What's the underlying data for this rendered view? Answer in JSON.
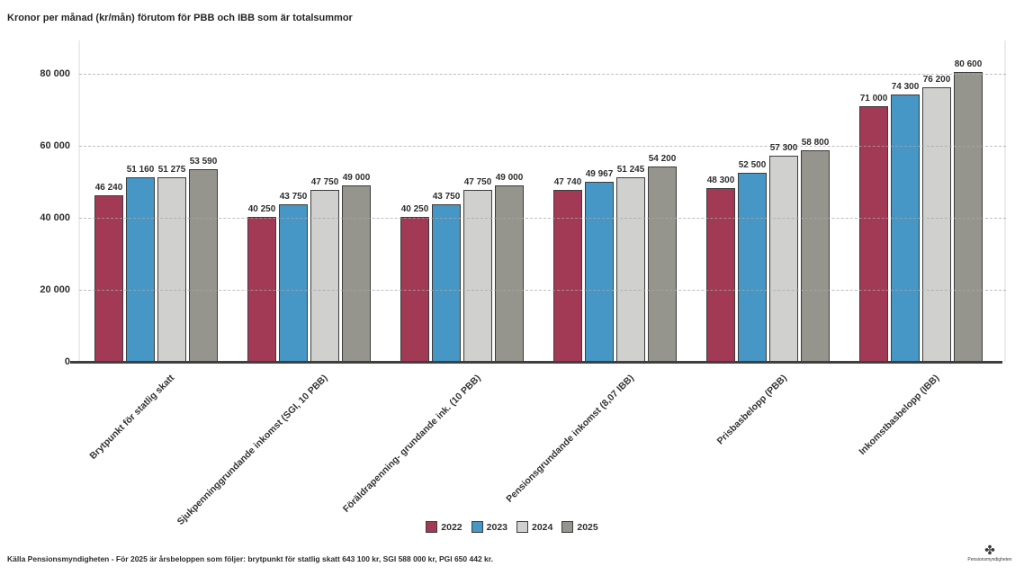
{
  "title": "Kronor per månad (kr/mån) förutom för PBB och IBB som är totalsummor",
  "source_note": "Källa Pensionsmyndigheten - För 2025 är årsbeloppen som följer: brytpunkt för statlig skatt 643 100 kr, SGI 588 000 kr, PGI 650 442 kr.",
  "logo": {
    "glyph": "✤",
    "caption": "Pensionsmyndigheten"
  },
  "colors": {
    "year_2022": "#a23955",
    "year_2023": "#4697c6",
    "year_2024": "#d0d0ce",
    "year_2025": "#95958d",
    "bar_border": "#3c3c3c",
    "axis_line": "#3f3f3f",
    "grid_dash": "#a9a9a9"
  },
  "chart_data": {
    "type": "bar",
    "title": "Kronor per månad (kr/mån) förutom för PBB och IBB som är totalsummor",
    "categories": [
      "Brytpunkt för statlig skatt",
      "Sjukpenninggrundande inkomst (SGI, 10 PBB)",
      "Föräldrapenning- grundande ink. (10 PBB)",
      "Pensionsgrundande inkomst (8,07 IBB)",
      "Prisbasbelopp (PBB)",
      "Inkomstbasbelopp (IBB)"
    ],
    "series": [
      {
        "name": "2022",
        "color": "#a23955",
        "values": [
          46240,
          40250,
          40250,
          47740,
          48300,
          71000
        ],
        "labels": [
          "46 240",
          "40 250",
          "40 250",
          "47 740",
          "48 300",
          "71 000"
        ]
      },
      {
        "name": "2023",
        "color": "#4697c6",
        "values": [
          51160,
          43750,
          43750,
          49967,
          52500,
          74300
        ],
        "labels": [
          "51 160",
          "43 750",
          "43 750",
          "49 967",
          "52 500",
          "74 300"
        ]
      },
      {
        "name": "2024",
        "color": "#d0d0ce",
        "values": [
          51275,
          47750,
          47750,
          51245,
          57300,
          76200
        ],
        "labels": [
          "51 275",
          "47 750",
          "47 750",
          "51 245",
          "57 300",
          "76 200"
        ]
      },
      {
        "name": "2025",
        "color": "#95958d",
        "values": [
          53590,
          49000,
          49000,
          54200,
          58800,
          80600
        ],
        "labels": [
          "53 590",
          "49 000",
          "49 000",
          "54 200",
          "58 800",
          "80 600"
        ]
      }
    ],
    "xlabel": "",
    "ylabel": "",
    "ylim": [
      0,
      85000
    ],
    "yticks": [
      {
        "label": "0",
        "value": 0
      },
      {
        "label": "20 000",
        "value": 20000
      },
      {
        "label": "40 000",
        "value": 40000
      },
      {
        "label": "60 000",
        "value": 60000
      },
      {
        "label": "80 000",
        "value": 80000
      }
    ],
    "grid": "horizontal-dashed",
    "legend_position": "bottom-center"
  }
}
